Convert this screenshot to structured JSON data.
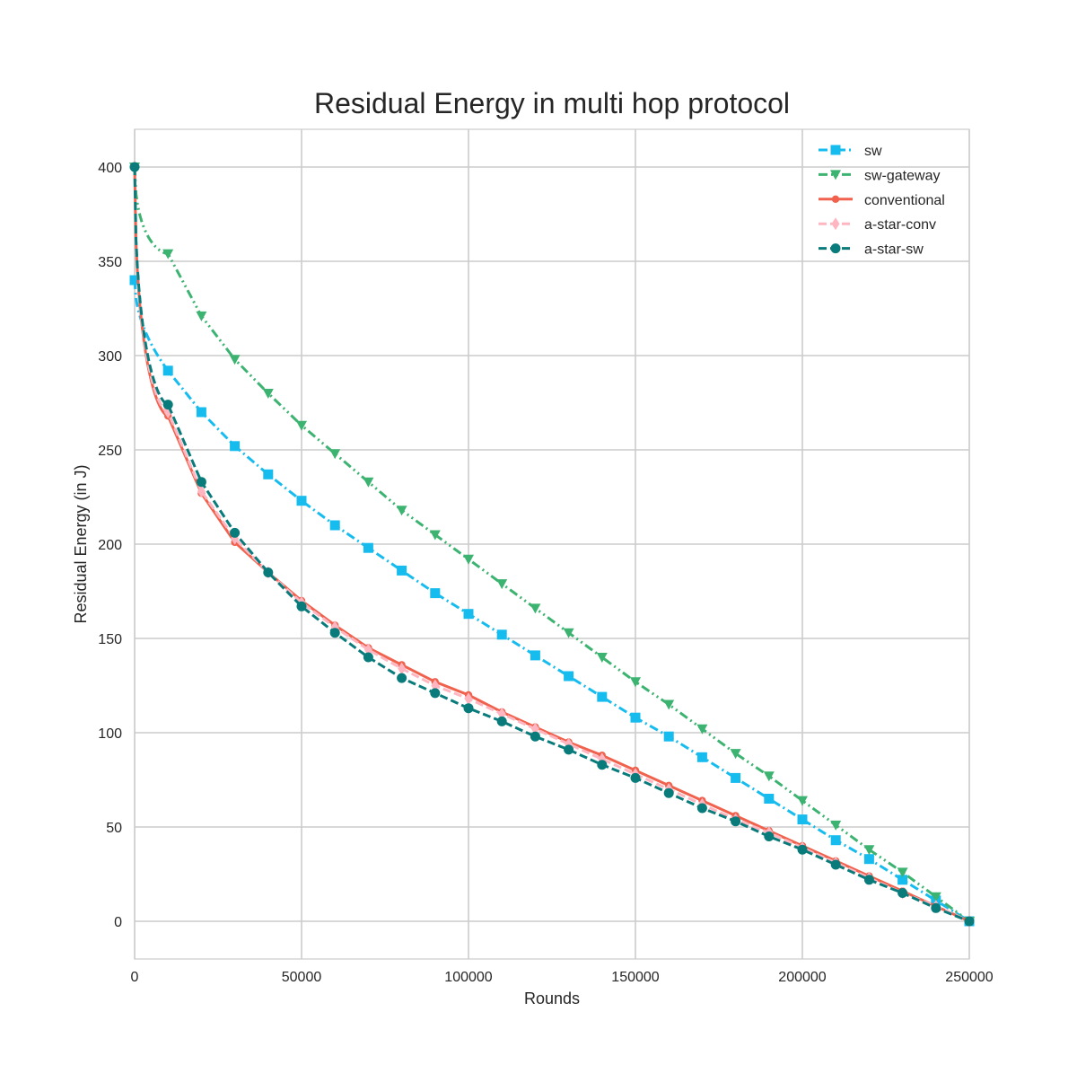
{
  "chart_data": {
    "type": "line",
    "title": "Residual Energy in multi hop protocol",
    "xlabel": "Rounds",
    "ylabel": "Residual Energy (in J)",
    "xlim": [
      0,
      250000
    ],
    "ylim": [
      -20,
      420
    ],
    "xticks": [
      0,
      50000,
      100000,
      150000,
      200000,
      250000
    ],
    "yticks": [
      0,
      50,
      100,
      150,
      200,
      250,
      300,
      350,
      400
    ],
    "grid": true,
    "legend_position": "top-right",
    "x": [
      0,
      10000,
      20000,
      30000,
      40000,
      50000,
      60000,
      70000,
      80000,
      90000,
      100000,
      110000,
      120000,
      130000,
      140000,
      150000,
      160000,
      170000,
      180000,
      190000,
      200000,
      210000,
      220000,
      230000,
      240000,
      250000
    ],
    "series": [
      {
        "name": "sw",
        "color": "#17bcef",
        "dash": "dashdot",
        "marker": "square",
        "start": 340,
        "values": [
          340,
          292,
          270,
          252,
          237,
          223,
          210,
          198,
          186,
          174,
          163,
          152,
          141,
          130,
          119,
          108,
          98,
          87,
          76,
          65,
          54,
          43,
          33,
          22,
          11,
          0
        ]
      },
      {
        "name": "sw-gateway",
        "color": "#3cb371",
        "dash": "dashdotdot",
        "marker": "triangle-down",
        "start": 400,
        "values": [
          400,
          354,
          321,
          298,
          280,
          263,
          248,
          233,
          218,
          205,
          192,
          179,
          166,
          153,
          140,
          127,
          115,
          102,
          89,
          77,
          64,
          51,
          38,
          26,
          13,
          0
        ]
      },
      {
        "name": "conventional",
        "color": "#f0624d",
        "dash": "solid",
        "marker": "circle-small",
        "start": 400,
        "values": [
          400,
          268,
          227,
          201,
          185,
          170,
          157,
          145,
          136,
          127,
          120,
          111,
          103,
          95,
          88,
          80,
          72,
          64,
          56,
          48,
          40,
          32,
          24,
          16,
          8,
          0
        ]
      },
      {
        "name": "a-star-conv",
        "color": "#ffb6c1",
        "dash": "dashed",
        "marker": "diamond",
        "start": 400,
        "values": [
          400,
          270,
          228,
          203,
          185,
          169,
          156,
          144,
          134,
          125,
          118,
          110,
          102,
          94,
          86,
          78,
          70,
          62,
          54,
          47,
          39,
          31,
          23,
          15,
          8,
          0
        ]
      },
      {
        "name": "a-star-sw",
        "color": "#0a7b7b",
        "dash": "dashed",
        "marker": "circle",
        "start": 400,
        "values": [
          400,
          274,
          233,
          206,
          185,
          167,
          153,
          140,
          129,
          121,
          113,
          106,
          98,
          91,
          83,
          76,
          68,
          60,
          53,
          45,
          38,
          30,
          22,
          15,
          7,
          0
        ]
      }
    ]
  }
}
